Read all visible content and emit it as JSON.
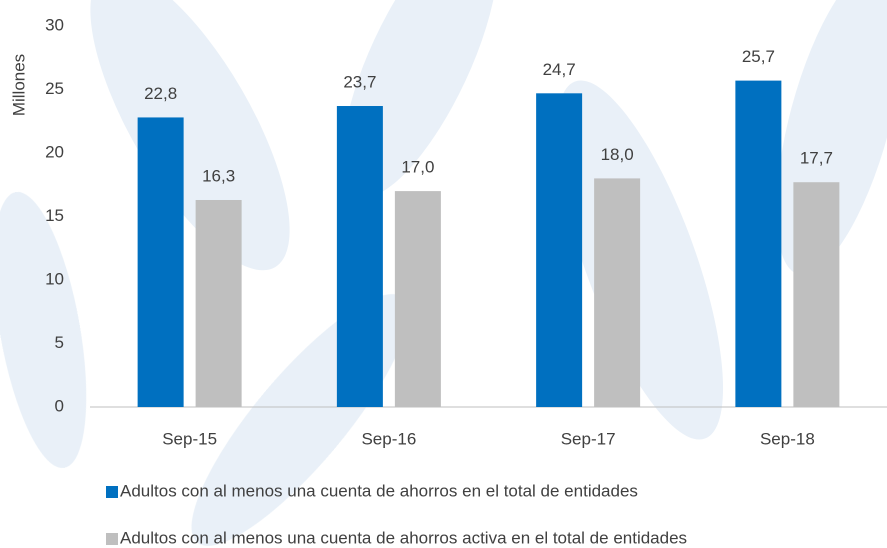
{
  "chart_data": {
    "type": "bar",
    "y_label": "Millones",
    "categories": [
      "Sep-15",
      "Sep-16",
      "Sep-17",
      "Sep-18"
    ],
    "series": [
      {
        "name": "Adultos con al menos una cuenta de ahorros en el total de entidades",
        "color": "#0070c0",
        "values": [
          22.8,
          23.7,
          24.7,
          25.7
        ],
        "value_labels": [
          "22,8",
          "23,7",
          "24,7",
          "25,7"
        ]
      },
      {
        "name": "Adultos con al menos una cuenta de ahorros activa en el total de entidades",
        "color": "#bfbfbf",
        "values": [
          16.3,
          17.0,
          18.0,
          17.7
        ],
        "value_labels": [
          "16,3",
          "17,0",
          "18,0",
          "17,7"
        ]
      }
    ],
    "ylim": [
      0,
      30
    ],
    "yticks": [
      0,
      5,
      10,
      15,
      20,
      25,
      30
    ],
    "grid": false,
    "legend": "bottom"
  }
}
